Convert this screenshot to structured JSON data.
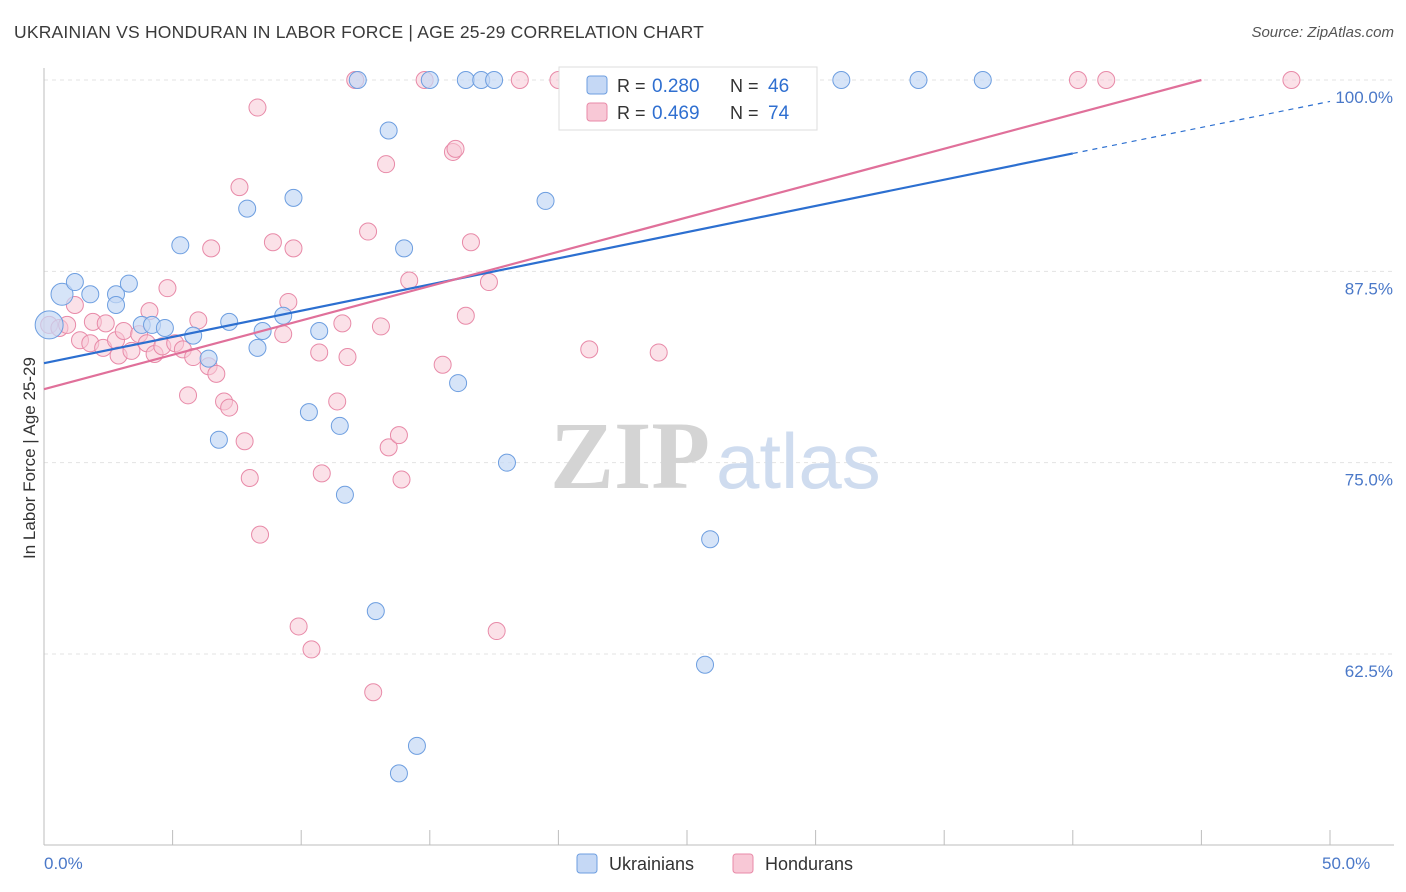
{
  "header": {
    "title": "UKRAINIAN VS HONDURAN IN LABOR FORCE | AGE 25-29 CORRELATION CHART",
    "source": "Source: ZipAtlas.com"
  },
  "colors": {
    "ukrainians_fill": "#c5d8f5",
    "ukrainians_stroke": "#6d9ee0",
    "ukrainians_line": "#2c6fd0",
    "hondurans_fill": "#f8c8d6",
    "hondurans_stroke": "#e88aa8",
    "hondurans_line": "#e0709a",
    "tick_text": "#4a78c8",
    "grid": "#e3e3e3"
  },
  "legend": {
    "r_label": "R =",
    "n_label": "N =",
    "rows": [
      {
        "r": "0.280",
        "n": "46"
      },
      {
        "r": "0.469",
        "n": "74"
      }
    ]
  },
  "watermark": {
    "zip": "ZIP",
    "atlas": "atlas"
  },
  "chart_data": {
    "type": "scatter",
    "title": "UKRAINIAN VS HONDURAN IN LABOR FORCE | AGE 25-29 CORRELATION CHART",
    "xlabel": "",
    "ylabel": "In Labor Force | Age 25-29",
    "xlim": [
      0,
      50
    ],
    "ylim": [
      53,
      101.5
    ],
    "x_tick_labels": [
      "0.0%",
      "50.0%"
    ],
    "y_ticks": [
      62.5,
      75.0,
      87.5,
      100.0
    ],
    "y_tick_labels": [
      "62.5%",
      "75.0%",
      "87.5%",
      "100.0%"
    ],
    "grid": true,
    "legend_position": "top-center",
    "series": [
      {
        "name": "Ukrainians",
        "r": 0.28,
        "n": 46,
        "trend": {
          "x": [
            0,
            40
          ],
          "y": [
            81.5,
            95.2
          ],
          "dashed_to": [
            50,
            98.6
          ]
        },
        "points": [
          [
            0.2,
            84.0
          ],
          [
            0.7,
            86.0
          ],
          [
            1.2,
            86.8
          ],
          [
            1.8,
            86.0
          ],
          [
            2.8,
            86.0
          ],
          [
            2.8,
            85.3
          ],
          [
            3.3,
            86.7
          ],
          [
            3.8,
            84.0
          ],
          [
            4.2,
            84.0
          ],
          [
            4.7,
            83.8
          ],
          [
            5.3,
            89.2
          ],
          [
            5.8,
            83.3
          ],
          [
            6.4,
            81.8
          ],
          [
            6.8,
            76.5
          ],
          [
            7.2,
            84.2
          ],
          [
            8.3,
            82.5
          ],
          [
            8.5,
            83.6
          ],
          [
            9.3,
            84.6
          ],
          [
            7.9,
            91.6
          ],
          [
            9.7,
            92.3
          ],
          [
            10.3,
            78.3
          ],
          [
            10.7,
            83.6
          ],
          [
            11.5,
            77.4
          ],
          [
            11.7,
            72.9
          ],
          [
            12.2,
            100.0
          ],
          [
            12.9,
            65.3
          ],
          [
            13.4,
            96.7
          ],
          [
            13.8,
            54.7
          ],
          [
            14.0,
            89.0
          ],
          [
            14.5,
            56.5
          ],
          [
            15.0,
            100.0
          ],
          [
            16.1,
            80.2
          ],
          [
            16.4,
            100.0
          ],
          [
            17.0,
            100.0
          ],
          [
            17.5,
            100.0
          ],
          [
            18.0,
            75.0
          ],
          [
            19.5,
            92.1
          ],
          [
            21.0,
            100.0
          ],
          [
            23.8,
            100.0
          ],
          [
            25.7,
            61.8
          ],
          [
            25.9,
            70.0
          ],
          [
            29.0,
            100.0
          ],
          [
            31.0,
            100.0
          ],
          [
            34.0,
            100.0
          ],
          [
            36.5,
            100.0
          ],
          [
            24.0,
            100.0
          ]
        ]
      },
      {
        "name": "Hondurans",
        "r": 0.469,
        "n": 74,
        "trend": {
          "x": [
            0,
            45
          ],
          "y": [
            79.8,
            100.0
          ]
        },
        "points": [
          [
            0.2,
            84.0
          ],
          [
            0.6,
            83.8
          ],
          [
            0.9,
            84.0
          ],
          [
            1.2,
            85.3
          ],
          [
            1.4,
            83.0
          ],
          [
            1.8,
            82.8
          ],
          [
            1.9,
            84.2
          ],
          [
            2.3,
            82.5
          ],
          [
            2.4,
            84.1
          ],
          [
            2.8,
            83.0
          ],
          [
            2.9,
            82.0
          ],
          [
            3.1,
            83.6
          ],
          [
            3.4,
            82.3
          ],
          [
            3.7,
            83.4
          ],
          [
            4.0,
            82.8
          ],
          [
            4.1,
            84.9
          ],
          [
            4.3,
            82.1
          ],
          [
            4.6,
            82.6
          ],
          [
            4.8,
            86.4
          ],
          [
            5.1,
            82.8
          ],
          [
            5.4,
            82.4
          ],
          [
            5.6,
            79.4
          ],
          [
            5.8,
            81.9
          ],
          [
            6.0,
            84.3
          ],
          [
            6.4,
            81.3
          ],
          [
            6.5,
            89.0
          ],
          [
            6.7,
            80.8
          ],
          [
            7.0,
            79.0
          ],
          [
            7.2,
            78.6
          ],
          [
            7.6,
            93.0
          ],
          [
            7.8,
            76.4
          ],
          [
            8.0,
            74.0
          ],
          [
            8.3,
            98.2
          ],
          [
            8.4,
            70.3
          ],
          [
            8.9,
            89.4
          ],
          [
            9.3,
            83.4
          ],
          [
            9.5,
            85.5
          ],
          [
            9.7,
            89.0
          ],
          [
            9.9,
            64.3
          ],
          [
            10.4,
            62.8
          ],
          [
            10.7,
            82.2
          ],
          [
            10.8,
            74.3
          ],
          [
            11.4,
            79.0
          ],
          [
            11.6,
            84.1
          ],
          [
            11.8,
            81.9
          ],
          [
            12.1,
            100.0
          ],
          [
            12.6,
            90.1
          ],
          [
            12.8,
            60.0
          ],
          [
            13.1,
            83.9
          ],
          [
            13.3,
            94.5
          ],
          [
            13.4,
            76.0
          ],
          [
            13.8,
            76.8
          ],
          [
            13.9,
            73.9
          ],
          [
            14.2,
            86.9
          ],
          [
            14.8,
            100.0
          ],
          [
            15.5,
            81.4
          ],
          [
            15.9,
            95.3
          ],
          [
            16.0,
            95.5
          ],
          [
            16.4,
            84.6
          ],
          [
            16.6,
            89.4
          ],
          [
            17.3,
            86.8
          ],
          [
            17.6,
            64.0
          ],
          [
            20.0,
            100.0
          ],
          [
            21.2,
            82.4
          ],
          [
            23.0,
            100.0
          ],
          [
            23.9,
            82.2
          ],
          [
            28.0,
            100.0
          ],
          [
            29.0,
            100.0
          ],
          [
            40.2,
            100.0
          ],
          [
            41.3,
            100.0
          ],
          [
            48.5,
            100.0
          ],
          [
            26.5,
            100.0
          ],
          [
            22.0,
            100.0
          ],
          [
            18.5,
            100.0
          ]
        ]
      }
    ]
  },
  "bottom_legend": [
    "Ukrainians",
    "Hondurans"
  ]
}
